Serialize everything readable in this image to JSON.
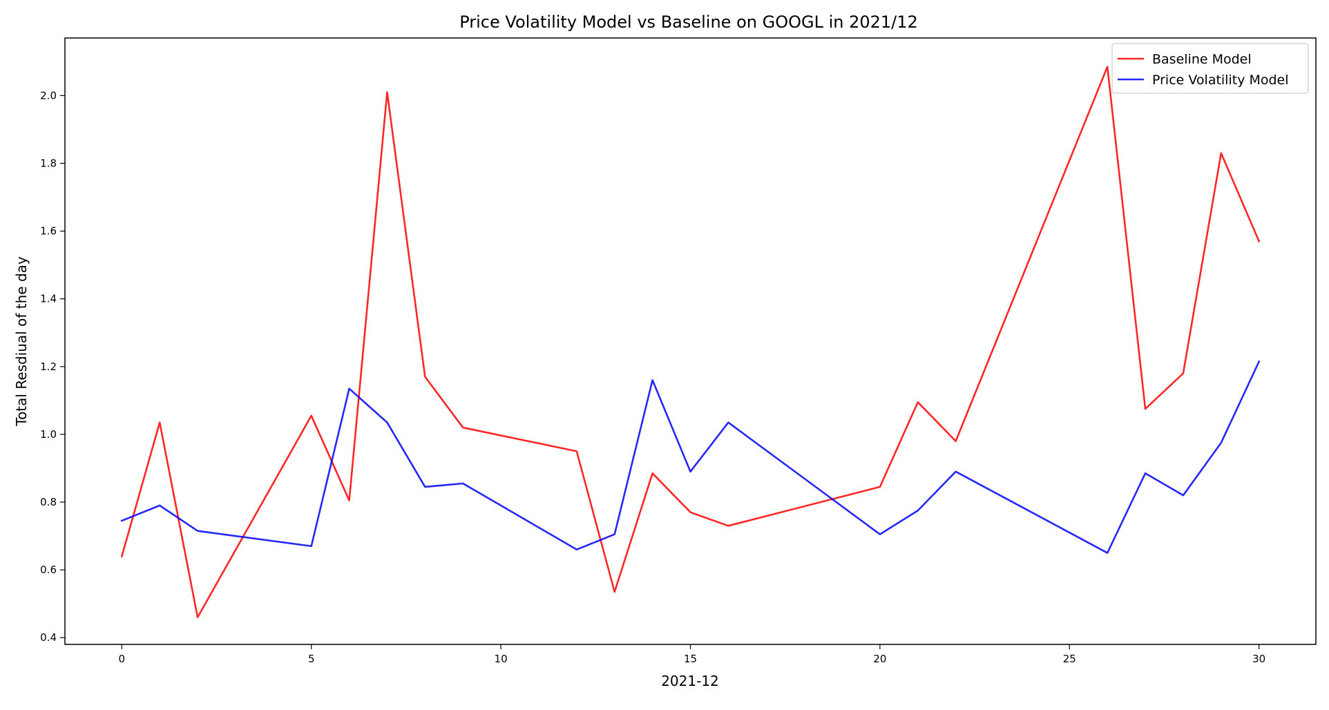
{
  "chart_data": {
    "type": "line",
    "title": "Price Volatility Model vs Baseline on GOOGL in 2021/12",
    "xlabel": "2021-12",
    "ylabel": "Total Resdiual of the day",
    "xlim": [
      -1.5,
      31.5
    ],
    "ylim": [
      0.38,
      2.17
    ],
    "xticks": [
      0,
      5,
      10,
      15,
      20,
      25,
      30
    ],
    "xtick_labels": [
      "0",
      "5",
      "10",
      "15",
      "20",
      "25",
      "30"
    ],
    "yticks": [
      0.4,
      0.6,
      0.8,
      1.0,
      1.2,
      1.4,
      1.6,
      1.8,
      2.0
    ],
    "ytick_labels": [
      "0.4",
      "0.6",
      "0.8",
      "1.0",
      "1.2",
      "1.4",
      "1.6",
      "1.8",
      "2.0"
    ],
    "grid": false,
    "legend_position": "top-right",
    "series": [
      {
        "name": "Baseline Model",
        "color": "#ff0000",
        "x": [
          0,
          1,
          2,
          5,
          6,
          7,
          8,
          9,
          12,
          13,
          14,
          15,
          16,
          20,
          21,
          22,
          26,
          27,
          28,
          29,
          30
        ],
        "y": [
          0.64,
          1.035,
          0.46,
          1.055,
          0.805,
          2.01,
          1.17,
          1.02,
          0.95,
          0.535,
          0.885,
          0.77,
          0.73,
          0.845,
          1.095,
          0.98,
          2.085,
          1.075,
          1.18,
          1.83,
          1.57
        ]
      },
      {
        "name": "Price Volatility Model",
        "color": "#0000ff",
        "x": [
          0,
          1,
          2,
          5,
          6,
          7,
          8,
          9,
          12,
          13,
          14,
          15,
          16,
          20,
          21,
          22,
          26,
          27,
          28,
          29,
          30
        ],
        "y": [
          0.745,
          0.79,
          0.715,
          0.67,
          1.135,
          1.035,
          0.845,
          0.855,
          0.66,
          0.705,
          1.16,
          0.89,
          1.035,
          0.705,
          0.775,
          0.89,
          0.65,
          0.885,
          0.82,
          0.975,
          1.215
        ]
      }
    ]
  }
}
